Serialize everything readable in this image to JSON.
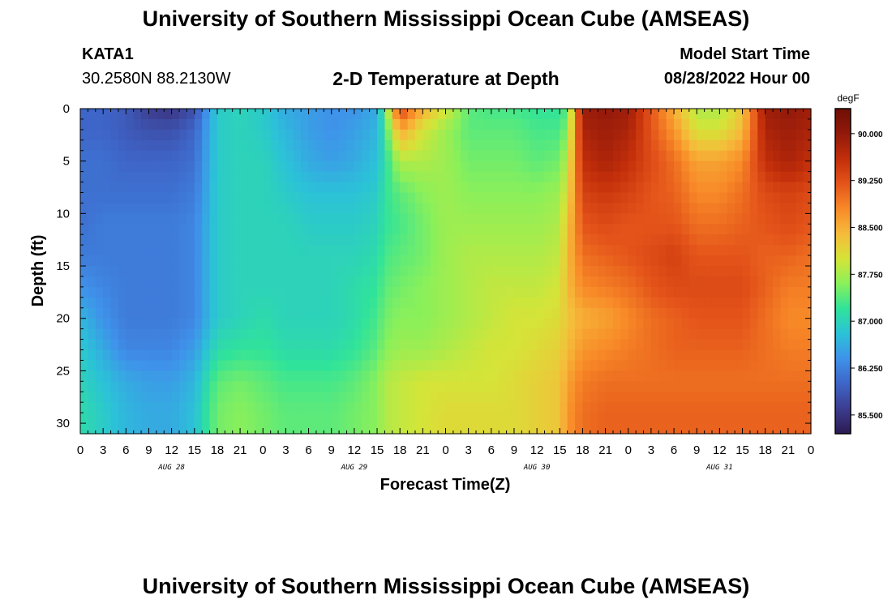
{
  "header": {
    "title": "University of Southern Mississippi Ocean Cube (AMSEAS)",
    "station_id": "KATA1",
    "station_coords": "30.2580N  88.2130W",
    "plot_title": "2-D Temperature at Depth",
    "start_label": "Model Start Time",
    "start_value": "08/28/2022 Hour 00"
  },
  "footer": {
    "title": "University of Southern Mississippi Ocean Cube (AMSEAS)"
  },
  "chart_data": {
    "type": "heatmap",
    "title": "2-D Temperature at Depth",
    "xlabel": "Forecast Time(Z)",
    "ylabel": "Depth (ft)",
    "x_ticks": [
      "0",
      "3",
      "6",
      "9",
      "12",
      "15",
      "18",
      "21",
      "0",
      "3",
      "6",
      "9",
      "12",
      "15",
      "18",
      "21",
      "0",
      "3",
      "6",
      "9",
      "12",
      "15",
      "18",
      "21",
      "0",
      "3",
      "6",
      "9",
      "12",
      "15",
      "18",
      "21",
      "0"
    ],
    "date_labels": [
      "AUG 28",
      "AUG 29",
      "AUG 30",
      "AUG 31"
    ],
    "xlim": [
      0,
      96
    ],
    "y_ticks": [
      0,
      5,
      10,
      15,
      20,
      25,
      30
    ],
    "ylim": [
      0,
      31
    ],
    "y_reversed": true,
    "colorbar": {
      "unit": "degF",
      "ticks": [
        "85.500",
        "86.250",
        "87.000",
        "87.750",
        "88.500",
        "89.250",
        "90.000"
      ],
      "range": [
        85.2,
        90.4
      ],
      "colors": [
        "#2c1a52",
        "#3c3d8f",
        "#3e65c8",
        "#3f92ea",
        "#2bc2d8",
        "#30e39a",
        "#8af05a",
        "#d5e438",
        "#f6bb3a",
        "#f88a28",
        "#e4541a",
        "#c22e0a",
        "#92190a",
        "#6e0f05"
      ]
    },
    "depths": [
      0,
      2,
      5,
      8,
      11,
      14,
      17,
      20,
      23,
      26,
      29,
      31
    ],
    "hours": [
      0,
      3,
      6,
      9,
      12,
      15,
      18,
      21,
      24,
      27,
      30,
      33,
      36,
      39,
      40,
      42,
      45,
      48,
      51,
      54,
      57,
      60,
      63,
      64,
      66,
      69,
      72,
      75,
      78,
      81,
      84,
      87,
      90,
      93,
      96
    ],
    "values": [
      [
        86.0,
        86.0,
        85.9,
        85.6,
        85.5,
        85.8,
        86.9,
        87.0,
        86.9,
        86.6,
        86.5,
        86.4,
        86.4,
        86.6,
        87.4,
        89.4,
        88.5,
        88.0,
        87.4,
        87.3,
        87.3,
        87.2,
        87.2,
        87.4,
        89.9,
        90.0,
        89.9,
        89.2,
        88.5,
        87.8,
        87.8,
        88.3,
        89.9,
        90.0,
        89.9
      ],
      [
        86.0,
        86.0,
        85.9,
        85.8,
        85.8,
        86.0,
        86.9,
        87.0,
        86.9,
        86.7,
        86.5,
        86.4,
        86.5,
        86.7,
        87.2,
        88.6,
        88.0,
        87.7,
        87.4,
        87.4,
        87.4,
        87.3,
        87.3,
        87.6,
        89.8,
        89.9,
        89.8,
        89.2,
        88.7,
        88.0,
        88.0,
        88.4,
        89.8,
        89.9,
        89.8
      ],
      [
        86.1,
        86.1,
        86.0,
        86.0,
        86.0,
        86.1,
        86.9,
        87.0,
        87.0,
        86.8,
        86.6,
        86.5,
        86.6,
        86.8,
        87.1,
        87.8,
        87.8,
        87.7,
        87.5,
        87.5,
        87.5,
        87.4,
        87.5,
        87.9,
        89.6,
        89.8,
        89.6,
        89.3,
        89.0,
        88.6,
        88.6,
        88.8,
        89.6,
        89.8,
        89.6
      ],
      [
        86.1,
        86.1,
        86.1,
        86.1,
        86.1,
        86.2,
        86.9,
        87.0,
        87.0,
        86.9,
        86.8,
        86.8,
        86.8,
        86.9,
        87.2,
        87.4,
        87.6,
        87.7,
        87.6,
        87.6,
        87.6,
        87.6,
        87.7,
        88.1,
        89.4,
        89.5,
        89.4,
        89.2,
        89.1,
        88.8,
        88.8,
        89.0,
        89.3,
        89.4,
        89.3
      ],
      [
        86.1,
        86.2,
        86.2,
        86.2,
        86.2,
        86.3,
        86.9,
        87.0,
        87.0,
        87.0,
        86.9,
        86.9,
        86.9,
        87.0,
        87.2,
        87.3,
        87.5,
        87.7,
        87.7,
        87.7,
        87.7,
        87.7,
        87.8,
        88.3,
        89.2,
        89.3,
        89.2,
        89.2,
        89.2,
        89.0,
        89.0,
        89.1,
        89.2,
        89.3,
        89.2
      ],
      [
        86.2,
        86.2,
        86.2,
        86.2,
        86.2,
        86.3,
        86.9,
        87.0,
        87.0,
        87.0,
        87.0,
        87.0,
        87.0,
        87.1,
        87.3,
        87.4,
        87.5,
        87.7,
        87.8,
        87.8,
        87.8,
        87.8,
        87.9,
        88.4,
        89.0,
        89.1,
        89.2,
        89.3,
        89.4,
        89.2,
        89.2,
        89.2,
        89.1,
        89.1,
        89.0
      ],
      [
        86.4,
        86.3,
        86.2,
        86.2,
        86.2,
        86.3,
        86.9,
        87.0,
        87.0,
        87.0,
        87.0,
        87.0,
        87.1,
        87.2,
        87.4,
        87.5,
        87.6,
        87.7,
        87.8,
        87.9,
        87.9,
        87.9,
        88.0,
        88.4,
        88.8,
        88.9,
        89.0,
        89.2,
        89.3,
        89.3,
        89.3,
        89.3,
        89.1,
        88.9,
        88.9
      ],
      [
        86.7,
        86.4,
        86.2,
        86.2,
        86.2,
        86.3,
        86.9,
        87.0,
        87.1,
        87.0,
        87.0,
        87.0,
        87.1,
        87.3,
        87.5,
        87.6,
        87.6,
        87.7,
        87.8,
        87.9,
        88.0,
        88.0,
        88.1,
        88.3,
        88.5,
        88.6,
        88.8,
        89.0,
        89.1,
        89.2,
        89.2,
        89.2,
        89.0,
        88.8,
        88.8
      ],
      [
        86.9,
        86.6,
        86.3,
        86.3,
        86.3,
        86.5,
        87.1,
        87.2,
        87.2,
        87.1,
        87.1,
        87.1,
        87.2,
        87.4,
        87.6,
        87.7,
        87.7,
        87.8,
        87.9,
        88.0,
        88.0,
        88.1,
        88.2,
        88.4,
        88.7,
        88.8,
        88.9,
        89.0,
        89.1,
        89.1,
        89.1,
        89.1,
        89.0,
        88.9,
        88.9
      ],
      [
        87.0,
        86.8,
        86.6,
        86.5,
        86.5,
        86.7,
        87.4,
        87.5,
        87.4,
        87.3,
        87.3,
        87.3,
        87.4,
        87.6,
        87.8,
        87.9,
        88.0,
        88.0,
        88.0,
        88.0,
        88.1,
        88.2,
        88.3,
        88.6,
        88.9,
        89.0,
        89.0,
        89.0,
        89.0,
        89.0,
        89.0,
        89.0,
        89.0,
        89.0,
        89.0
      ],
      [
        87.1,
        86.9,
        86.7,
        86.6,
        86.6,
        86.8,
        87.5,
        87.6,
        87.5,
        87.4,
        87.4,
        87.4,
        87.5,
        87.6,
        87.8,
        87.9,
        88.0,
        88.1,
        88.1,
        88.1,
        88.1,
        88.2,
        88.3,
        88.7,
        89.0,
        89.1,
        89.1,
        89.1,
        89.1,
        89.1,
        89.1,
        89.1,
        89.1,
        89.1,
        89.1
      ],
      [
        87.1,
        86.9,
        86.7,
        86.6,
        86.6,
        86.8,
        87.5,
        87.6,
        87.5,
        87.4,
        87.4,
        87.4,
        87.5,
        87.6,
        87.8,
        87.9,
        88.0,
        88.1,
        88.1,
        88.1,
        88.1,
        88.2,
        88.3,
        88.7,
        89.0,
        89.1,
        89.1,
        89.1,
        89.1,
        89.1,
        89.1,
        89.1,
        89.1,
        89.1,
        89.1
      ]
    ]
  }
}
